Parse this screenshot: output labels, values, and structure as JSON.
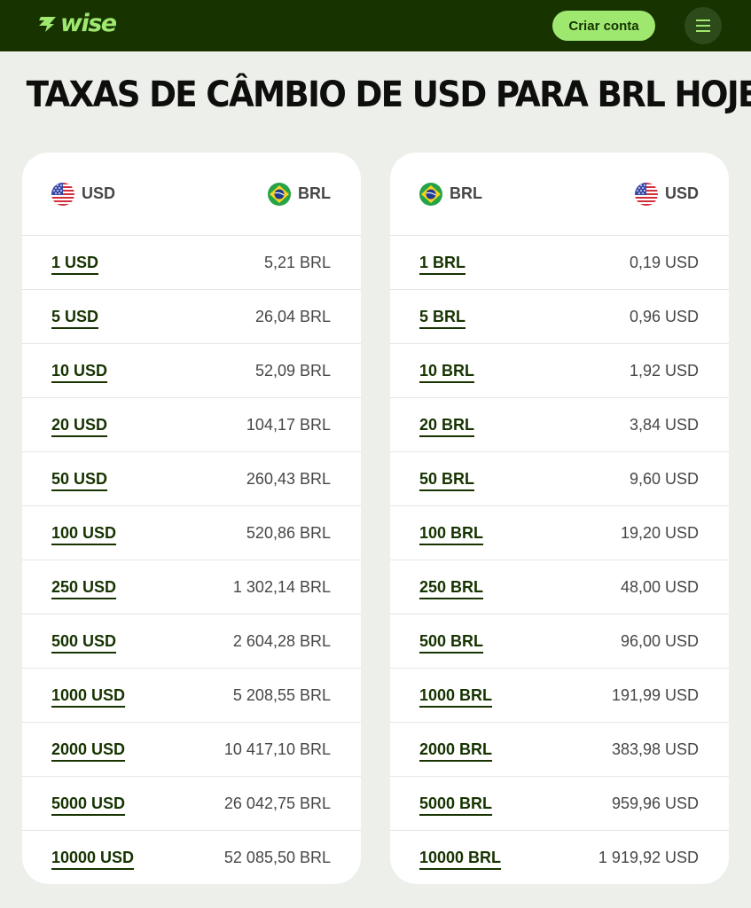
{
  "header": {
    "logo_text": "wise",
    "cta_label": "Criar conta",
    "menu_icon": "hamburger-menu-icon"
  },
  "page": {
    "title": "TAXAS DE CÂMBIO DE USD PARA BRL HOJE"
  },
  "tables": [
    {
      "from_code": "USD",
      "to_code": "BRL",
      "from_flag": "us-flag-icon",
      "to_flag": "brazil-flag-icon",
      "rows": [
        {
          "amount": "1 USD",
          "converted": "5,21 BRL"
        },
        {
          "amount": "5 USD",
          "converted": "26,04 BRL"
        },
        {
          "amount": "10 USD",
          "converted": "52,09 BRL"
        },
        {
          "amount": "20 USD",
          "converted": "104,17 BRL"
        },
        {
          "amount": "50 USD",
          "converted": "260,43 BRL"
        },
        {
          "amount": "100 USD",
          "converted": "520,86 BRL"
        },
        {
          "amount": "250 USD",
          "converted": "1 302,14 BRL"
        },
        {
          "amount": "500 USD",
          "converted": "2 604,28 BRL"
        },
        {
          "amount": "1000 USD",
          "converted": "5 208,55 BRL"
        },
        {
          "amount": "2000 USD",
          "converted": "10 417,10 BRL"
        },
        {
          "amount": "5000 USD",
          "converted": "26 042,75 BRL"
        },
        {
          "amount": "10000 USD",
          "converted": "52 085,50 BRL"
        }
      ]
    },
    {
      "from_code": "BRL",
      "to_code": "USD",
      "from_flag": "brazil-flag-icon",
      "to_flag": "us-flag-icon",
      "rows": [
        {
          "amount": "1 BRL",
          "converted": "0,19 USD"
        },
        {
          "amount": "5 BRL",
          "converted": "0,96 USD"
        },
        {
          "amount": "10 BRL",
          "converted": "1,92 USD"
        },
        {
          "amount": "20 BRL",
          "converted": "3,84 USD"
        },
        {
          "amount": "50 BRL",
          "converted": "9,60 USD"
        },
        {
          "amount": "100 BRL",
          "converted": "19,20 USD"
        },
        {
          "amount": "250 BRL",
          "converted": "48,00 USD"
        },
        {
          "amount": "500 BRL",
          "converted": "96,00 USD"
        },
        {
          "amount": "1000 BRL",
          "converted": "191,99 USD"
        },
        {
          "amount": "2000 BRL",
          "converted": "383,98 USD"
        },
        {
          "amount": "5000 BRL",
          "converted": "959,96 USD"
        },
        {
          "amount": "10000 BRL",
          "converted": "1 919,92 USD"
        }
      ]
    }
  ],
  "colors": {
    "brand_dark": "#163300",
    "brand_green": "#9fe870",
    "background": "#edefeb"
  }
}
